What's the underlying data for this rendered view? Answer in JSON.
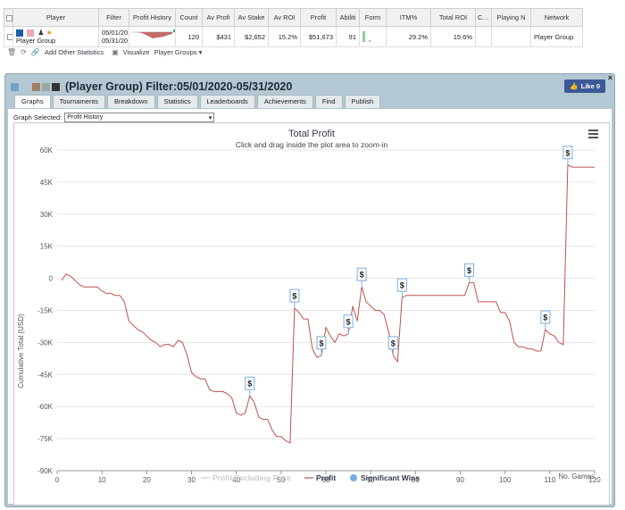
{
  "grid": {
    "headers": [
      "Player",
      "Filter",
      "Profit History",
      "Count",
      "Av Profi",
      "Av Stake",
      "Av ROI",
      "Profit",
      "Abiliti",
      "Form",
      "ITM%",
      "Total ROI",
      "Ctry",
      "Playing N",
      "Network"
    ],
    "row": {
      "player": "Player Group",
      "filter_line1": "05/01/20",
      "filter_line2": "05/31/20",
      "count": "120",
      "av_profit": "$431",
      "av_stake": "$2,652",
      "av_roi": "15.2%",
      "profit": "$51,673",
      "ability": "91",
      "itm": "29.2%",
      "total_roi": "15.6%",
      "network": "Player Group"
    }
  },
  "toolbar": {
    "add_stats": "Add Other Statistics",
    "visualize": "Visualize",
    "player_groups": "Player Groups"
  },
  "panel": {
    "title": "(Player Group) Filter:05/01/2020-05/31/2020",
    "like_label": "Like 0",
    "close": "×",
    "tabs": [
      "Graphs",
      "Tournaments",
      "Breakdown",
      "Statistics",
      "Leaderboards",
      "Achievements",
      "Find",
      "Publish"
    ],
    "graph_selected_label": "Graph Selected:",
    "graph_selected_value": "Profit History"
  },
  "colors": {
    "profit_line": "#c0504d",
    "profit_excl_rake": "#cccccc",
    "significant_wins": "#7aaee0",
    "swatch_blue": "#1a5fa8",
    "swatch_pink": "#e8a8b8",
    "swatch_tan": "#a08060",
    "swatch_gray": "#9aa5a5",
    "swatch_dark": "#333333",
    "panel_bg": "#b3c8d3"
  },
  "chart_data": {
    "type": "line",
    "title": "Total Profit",
    "subtitle": "Click and drag inside the plot area to zoom-in",
    "ylabel": "Cumulative Total (USD)",
    "xlabel": "No. Games",
    "xlim": [
      0,
      120
    ],
    "ylim": [
      -90000,
      60000
    ],
    "x_ticks": [
      0,
      10,
      20,
      30,
      40,
      50,
      60,
      70,
      80,
      90,
      100,
      110,
      120
    ],
    "y_ticks": [
      -90000,
      -75000,
      -60000,
      -45000,
      -30000,
      -15000,
      0,
      15000,
      30000,
      45000,
      60000
    ],
    "y_tick_labels": [
      "-90K",
      "-75K",
      "-60K",
      "-45K",
      "-30K",
      "-15K",
      "0",
      "15K",
      "30K",
      "45K",
      "60K"
    ],
    "legend": [
      "Profit Excluding Rake",
      "Profit",
      "Significant Wins"
    ],
    "legend_placement": "bottom-center",
    "grid": true,
    "series": [
      {
        "name": "Profit",
        "points": [
          [
            1,
            -1000
          ],
          [
            2,
            2000
          ],
          [
            3,
            1000
          ],
          [
            4,
            -1000
          ],
          [
            5,
            -3000
          ],
          [
            6,
            -4000
          ],
          [
            7,
            -4000
          ],
          [
            8,
            -4000
          ],
          [
            9,
            -4000
          ],
          [
            10,
            -6000
          ],
          [
            11,
            -7000
          ],
          [
            12,
            -7000
          ],
          [
            13,
            -8000
          ],
          [
            14,
            -8000
          ],
          [
            15,
            -11000
          ],
          [
            16,
            -20000
          ],
          [
            17,
            -22000
          ],
          [
            18,
            -24000
          ],
          [
            19,
            -25000
          ],
          [
            20,
            -27000
          ],
          [
            21,
            -29000
          ],
          [
            22,
            -30000
          ],
          [
            23,
            -32000
          ],
          [
            24,
            -31000
          ],
          [
            25,
            -31000
          ],
          [
            26,
            -32000
          ],
          [
            27,
            -29000
          ],
          [
            28,
            -30000
          ],
          [
            29,
            -36000
          ],
          [
            30,
            -44000
          ],
          [
            31,
            -46000
          ],
          [
            32,
            -47000
          ],
          [
            33,
            -47000
          ],
          [
            34,
            -52000
          ],
          [
            35,
            -53000
          ],
          [
            36,
            -53000
          ],
          [
            37,
            -53000
          ],
          [
            38,
            -54000
          ],
          [
            39,
            -56000
          ],
          [
            40,
            -63000
          ],
          [
            41,
            -64000
          ],
          [
            42,
            -63000
          ],
          [
            43,
            -55000
          ],
          [
            44,
            -58000
          ],
          [
            45,
            -65000
          ],
          [
            46,
            -66000
          ],
          [
            47,
            -66000
          ],
          [
            48,
            -71000
          ],
          [
            49,
            -74000
          ],
          [
            50,
            -74000
          ],
          [
            51,
            -76000
          ],
          [
            52,
            -77000
          ],
          [
            53,
            -14000
          ],
          [
            54,
            -16000
          ],
          [
            55,
            -19000
          ],
          [
            56,
            -19000
          ],
          [
            57,
            -33000
          ],
          [
            58,
            -37000
          ],
          [
            59,
            -36000
          ],
          [
            60,
            -23000
          ],
          [
            61,
            -27000
          ],
          [
            62,
            -30000
          ],
          [
            63,
            -26000
          ],
          [
            64,
            -27000
          ],
          [
            65,
            -26000
          ],
          [
            66,
            -13000
          ],
          [
            67,
            -20000
          ],
          [
            68,
            -4000
          ],
          [
            69,
            -11000
          ],
          [
            70,
            -13000
          ],
          [
            71,
            -15000
          ],
          [
            72,
            -15000
          ],
          [
            73,
            -17000
          ],
          [
            74,
            -25000
          ],
          [
            75,
            -36000
          ],
          [
            76,
            -39000
          ],
          [
            77,
            -9000
          ],
          [
            78,
            -8000
          ],
          [
            79,
            -8000
          ],
          [
            80,
            -8000
          ],
          [
            81,
            -8000
          ],
          [
            82,
            -8000
          ],
          [
            83,
            -8000
          ],
          [
            84,
            -8000
          ],
          [
            85,
            -8000
          ],
          [
            86,
            -8000
          ],
          [
            87,
            -8000
          ],
          [
            88,
            -8000
          ],
          [
            89,
            -8000
          ],
          [
            90,
            -8000
          ],
          [
            91,
            -8000
          ],
          [
            92,
            -2000
          ],
          [
            93,
            -2000
          ],
          [
            94,
            -11000
          ],
          [
            95,
            -11000
          ],
          [
            96,
            -11000
          ],
          [
            97,
            -11000
          ],
          [
            98,
            -11000
          ],
          [
            99,
            -16000
          ],
          [
            100,
            -16000
          ],
          [
            101,
            -20000
          ],
          [
            102,
            -30000
          ],
          [
            103,
            -32000
          ],
          [
            104,
            -32000
          ],
          [
            105,
            -33000
          ],
          [
            106,
            -33000
          ],
          [
            107,
            -34000
          ],
          [
            108,
            -34000
          ],
          [
            109,
            -24000
          ],
          [
            110,
            -26000
          ],
          [
            111,
            -27000
          ],
          [
            112,
            -30000
          ],
          [
            113,
            -31000
          ],
          [
            114,
            53000
          ],
          [
            115,
            52000
          ],
          [
            116,
            52000
          ],
          [
            117,
            52000
          ],
          [
            118,
            52000
          ],
          [
            119,
            52000
          ],
          [
            120,
            52000
          ]
        ]
      }
    ],
    "significant_wins": [
      43,
      53,
      59,
      65,
      68,
      75,
      77,
      92,
      109,
      114
    ]
  }
}
